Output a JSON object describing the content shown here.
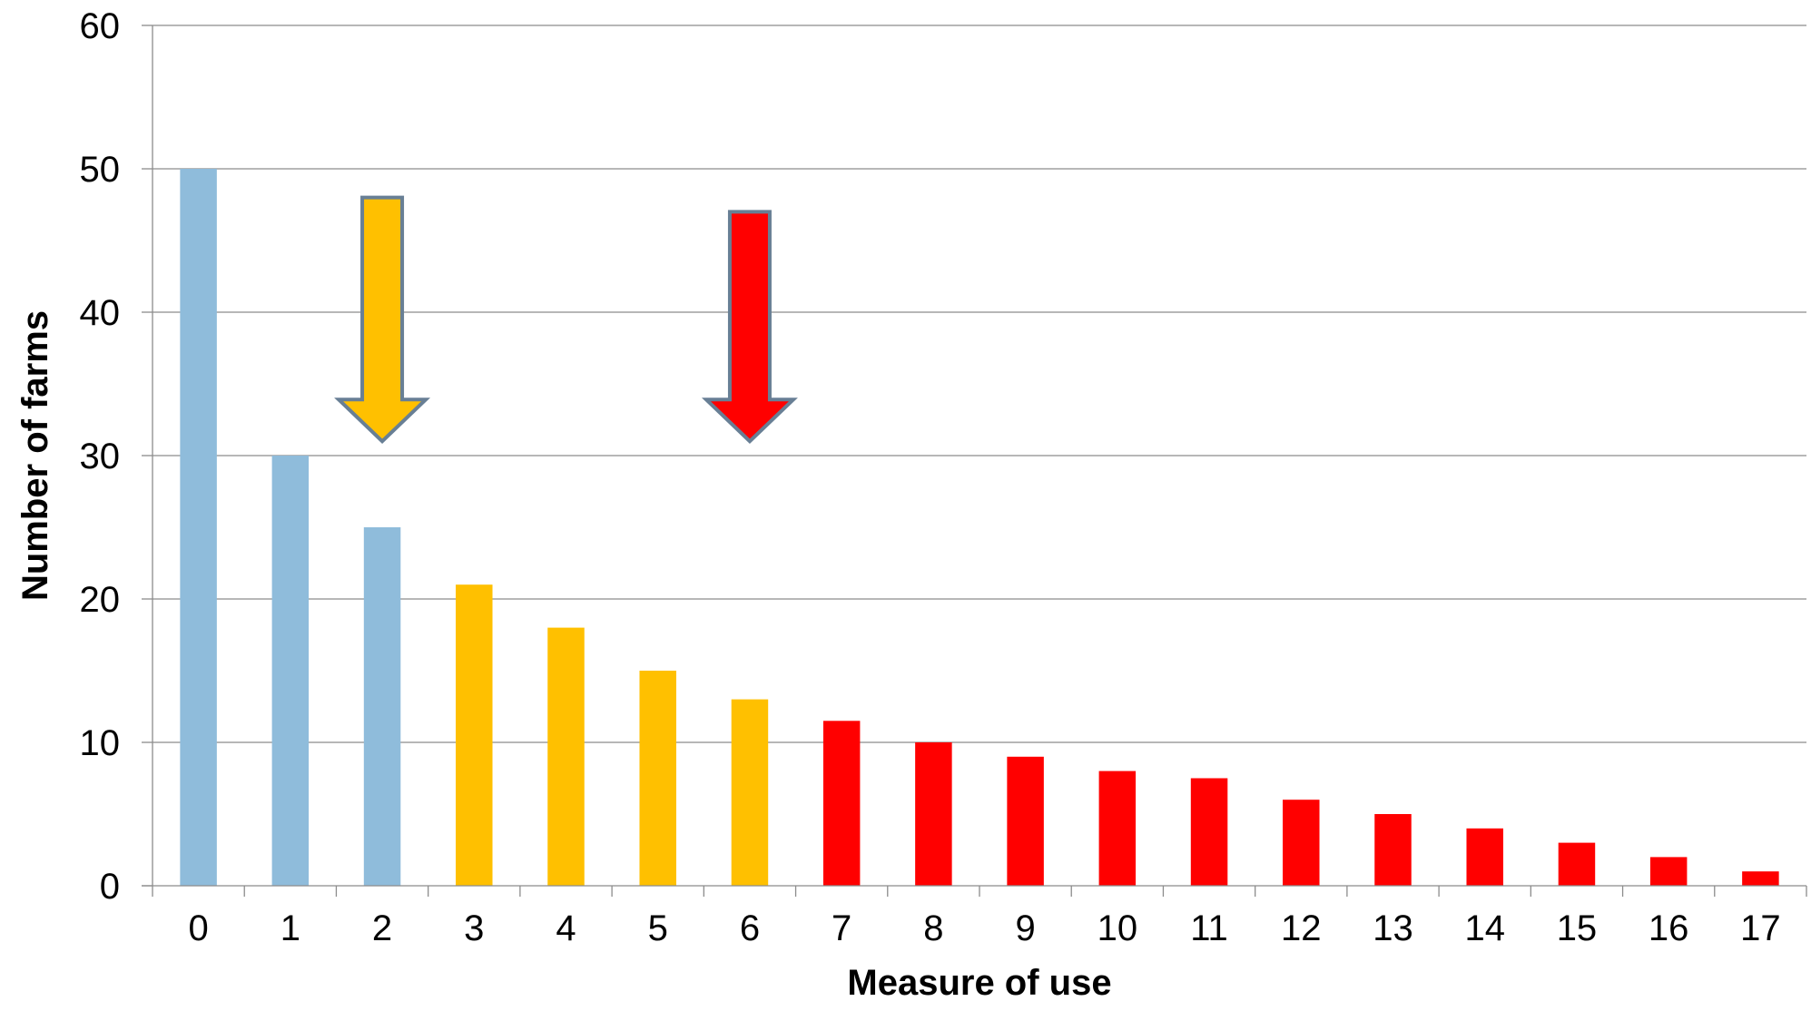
{
  "chart_data": {
    "type": "bar",
    "title": "",
    "xlabel": "Measure of use",
    "ylabel": "Number of farms",
    "categories": [
      "0",
      "1",
      "2",
      "3",
      "4",
      "5",
      "6",
      "7",
      "8",
      "9",
      "10",
      "11",
      "12",
      "13",
      "14",
      "15",
      "16",
      "17"
    ],
    "values": [
      50,
      30,
      25,
      21,
      18,
      15,
      13,
      11.5,
      10,
      9,
      8,
      7.5,
      6,
      5,
      4,
      3,
      2,
      1
    ],
    "bar_groups": [
      "low",
      "low",
      "low",
      "medium",
      "medium",
      "medium",
      "medium",
      "high",
      "high",
      "high",
      "high",
      "high",
      "high",
      "high",
      "high",
      "high",
      "high",
      "high"
    ],
    "ylim": [
      0,
      60
    ],
    "yticks": [
      0,
      10,
      20,
      30,
      40,
      50,
      60
    ],
    "grid": true,
    "legend": "none",
    "annotations": [
      {
        "type": "down-arrow",
        "at_x": 2.5,
        "from_y": 48,
        "to_y": 31,
        "fill": "#ffc000"
      },
      {
        "type": "down-arrow",
        "at_x": 6.5,
        "from_y": 47,
        "to_y": 31,
        "fill": "#ff0000"
      }
    ]
  },
  "colors": {
    "low": "#8fbcdb",
    "medium": "#ffc000",
    "high": "#ff0000",
    "arrow_outline": "#687f95",
    "grid": "#8c8c8c"
  }
}
